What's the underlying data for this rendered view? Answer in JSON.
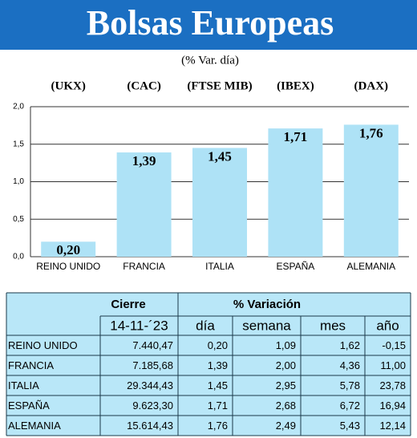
{
  "chart_data": {
    "type": "bar",
    "title": "Bolsas Europeas",
    "subtitle": "(% Var. día)",
    "codes": [
      "(UKX)",
      "(CAC)",
      "(FTSE MIB)",
      "(IBEX)",
      "(DAX)"
    ],
    "categories": [
      "REINO UNIDO",
      "FRANCIA",
      "ITALIA",
      "ESPAÑA",
      "ALEMANIA"
    ],
    "values": [
      0.2,
      1.39,
      1.45,
      1.71,
      1.76
    ],
    "value_labels": [
      "0,20",
      "1,39",
      "1,45",
      "1,71",
      "1,76"
    ],
    "color": "#aee2f6",
    "ylim": [
      0,
      2
    ],
    "yticks": [
      {
        "value": 0,
        "label": "0,0"
      },
      {
        "value": 0.5,
        "label": "0,5"
      },
      {
        "value": 1,
        "label": "1,0"
      },
      {
        "value": 1.5,
        "label": "1,5"
      },
      {
        "value": 2,
        "label": "2,0"
      }
    ],
    "grid": true
  },
  "table": {
    "group_headers": [
      "Cierre",
      "% Variación"
    ],
    "headers": [
      "14-11-´23",
      "día",
      "semana",
      "mes",
      "año"
    ],
    "rows": [
      [
        "REINO UNIDO",
        "7.440,47",
        "0,20",
        "1,09",
        "1,62",
        "-0,15"
      ],
      [
        "FRANCIA",
        "7.185,68",
        "1,39",
        "2,00",
        "4,36",
        "11,00"
      ],
      [
        "ITALIA",
        "29.344,43",
        "1,45",
        "2,95",
        "5,78",
        "23,78"
      ],
      [
        "ESPAÑA",
        "9.623,30",
        "1,71",
        "2,68",
        "6,72",
        "16,94"
      ],
      [
        "ALEMANIA",
        "15.614,43",
        "1,76",
        "2,49",
        "5,43",
        "12,14"
      ]
    ]
  }
}
